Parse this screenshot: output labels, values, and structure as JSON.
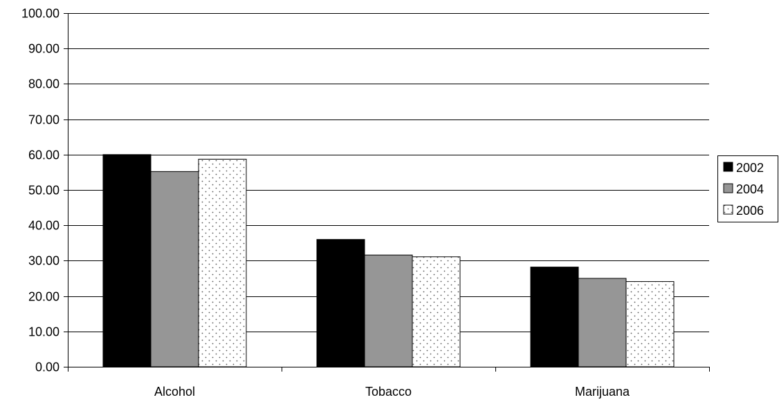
{
  "chart_data": {
    "type": "bar",
    "title": "",
    "xlabel": "",
    "ylabel": "",
    "categories": [
      "Alcohol",
      "Tobacco",
      "Marijuana"
    ],
    "series": [
      {
        "name": "2002",
        "values": [
          60.0,
          36.0,
          28.2
        ],
        "color": "#000000",
        "fill_style": "solid"
      },
      {
        "name": "2004",
        "values": [
          55.2,
          31.6,
          25.0
        ],
        "color": "#969696",
        "fill_style": "solid"
      },
      {
        "name": "2006",
        "values": [
          58.7,
          31.1,
          24.1
        ],
        "color": "#ffffff",
        "fill_style": "dotted"
      }
    ],
    "ylim": [
      0,
      100
    ],
    "yticks": [
      "0.00",
      "10.00",
      "20.00",
      "30.00",
      "40.00",
      "50.00",
      "60.00",
      "70.00",
      "80.00",
      "90.00",
      "100.00"
    ],
    "grid": true,
    "legend_position": "right"
  }
}
